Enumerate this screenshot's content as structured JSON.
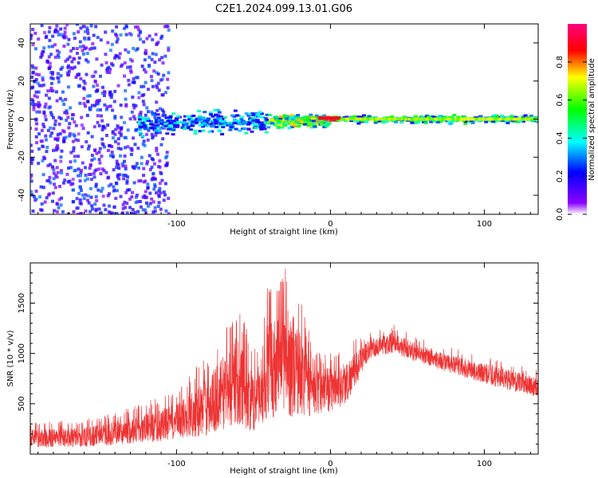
{
  "title": "C2E1.2024.099.13.01.G06",
  "chart_data": [
    {
      "type": "heatmap",
      "xlabel": "Height of straight line (km)",
      "ylabel": "Frequency (Hz)",
      "xlim": [
        -195,
        135
      ],
      "ylim": [
        -50,
        50
      ],
      "x_ticks": [
        -100,
        0,
        100
      ],
      "x_tick_labels": [
        "-100",
        "0",
        "100"
      ],
      "y_ticks": [
        -40,
        -20,
        0,
        20,
        40
      ],
      "y_tick_labels": [
        "-40",
        "-20",
        "0",
        "20",
        "40"
      ],
      "colorbar": {
        "label": "Normalized spectral amplitude",
        "range": [
          0,
          1
        ],
        "ticks": [
          0.0,
          0.2,
          0.4,
          0.6,
          0.8
        ],
        "tick_labels": [
          "0.0",
          "0.2",
          "0.4",
          "0.6",
          "0.8"
        ],
        "colors": [
          "#ffffff",
          "#8a00ff",
          "#0000ff",
          "#00ffff",
          "#00ff00",
          "#ffff00",
          "#ff0000",
          "#ff0080"
        ]
      },
      "regions": [
        {
          "x_range": [
            -195,
            -105
          ],
          "freq_spread": 50,
          "amplitude": 0.15,
          "description": "scattered noise"
        },
        {
          "x_range": [
            -125,
            -40
          ],
          "freq_center": -2,
          "freq_spread": 6,
          "amplitude": 0.35
        },
        {
          "x_range": [
            -40,
            0
          ],
          "freq_center": -1,
          "freq_spread": 3,
          "amplitude": 0.6
        },
        {
          "x_range": [
            -8,
            5
          ],
          "freq_center": 0,
          "freq_spread": 1,
          "amplitude": 0.85
        },
        {
          "x_range": [
            5,
            135
          ],
          "freq_center": 0,
          "freq_spread": 2,
          "amplitude": 0.45
        }
      ]
    },
    {
      "type": "line",
      "xlabel": "Height of straight line (km)",
      "ylabel": "SNR (10 * v/v)",
      "xlim": [
        -195,
        135
      ],
      "ylim": [
        0,
        1900
      ],
      "x_ticks": [
        -100,
        0,
        100
      ],
      "x_tick_labels": [
        "-100",
        "0",
        "100"
      ],
      "y_ticks": [
        500,
        1000,
        1500
      ],
      "y_tick_labels": [
        "500",
        "1000",
        "1500"
      ],
      "color": "#ee3333",
      "envelope": [
        {
          "x": -195,
          "low": 20,
          "high": 320
        },
        {
          "x": -160,
          "low": 20,
          "high": 340
        },
        {
          "x": -140,
          "low": 30,
          "high": 420
        },
        {
          "x": -120,
          "low": 40,
          "high": 520
        },
        {
          "x": -100,
          "low": 60,
          "high": 640
        },
        {
          "x": -80,
          "low": 40,
          "high": 1000
        },
        {
          "x": -60,
          "low": 80,
          "high": 1560
        },
        {
          "x": -50,
          "low": 60,
          "high": 1000
        },
        {
          "x": -40,
          "low": 120,
          "high": 1750
        },
        {
          "x": -25,
          "low": 100,
          "high": 1900
        },
        {
          "x": -10,
          "low": 250,
          "high": 1000
        },
        {
          "x": 10,
          "low": 380,
          "high": 1100
        },
        {
          "x": 25,
          "low": 900,
          "high": 1200
        },
        {
          "x": 40,
          "low": 950,
          "high": 1300
        },
        {
          "x": 60,
          "low": 850,
          "high": 1150
        },
        {
          "x": 80,
          "low": 750,
          "high": 1050
        },
        {
          "x": 100,
          "low": 650,
          "high": 980
        },
        {
          "x": 120,
          "low": 570,
          "high": 900
        },
        {
          "x": 135,
          "low": 520,
          "high": 850
        }
      ]
    }
  ]
}
